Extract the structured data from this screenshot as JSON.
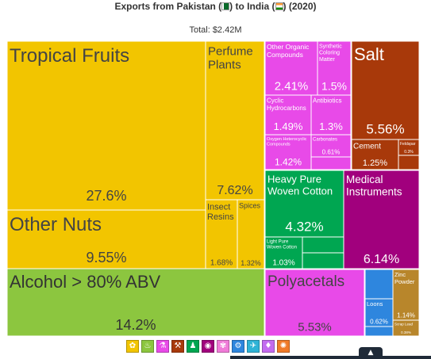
{
  "header": {
    "title_prefix": "Exports from Pakistan (",
    "title_middle": ") to India (",
    "title_suffix": ") (2020)",
    "subtitle": "Total: $2.42M"
  },
  "chart_data": {
    "type": "treemap",
    "title": "Exports from Pakistan ( ) to India ( ) (2020)",
    "subtitle": "Total: $2.42M",
    "unit": "share of total exports (%)",
    "cells": [
      {
        "name": "Tropical Fruits",
        "value": 27.6,
        "label": "27.6%",
        "color": "#f2c500"
      },
      {
        "name": "Other Nuts",
        "value": 9.55,
        "label": "9.55%",
        "color": "#f2c500"
      },
      {
        "name": "Perfume Plants",
        "value": 7.62,
        "label": "7.62%",
        "color": "#f2c500"
      },
      {
        "name": "Insect Resins",
        "value": 1.68,
        "label": "1.68%",
        "color": "#f2c500"
      },
      {
        "name": "Spices",
        "value": 1.32,
        "label": "1.32%",
        "color": "#f2c500"
      },
      {
        "name": "Alcohol > 80% ABV",
        "value": 14.2,
        "label": "14.2%",
        "color": "#8cc63f"
      },
      {
        "name": "Other Organic Compounds",
        "value": 2.41,
        "label": "2.41%",
        "color": "#e84ae8"
      },
      {
        "name": "Synthetic Coloring Matter",
        "value": 1.5,
        "label": "1.5%",
        "color": "#e84ae8"
      },
      {
        "name": "Cyclic Hydrocarbons",
        "value": 1.49,
        "label": "1.49%",
        "color": "#e84ae8"
      },
      {
        "name": "Antibiotics",
        "value": 1.3,
        "label": "1.3%",
        "color": "#e84ae8"
      },
      {
        "name": "Oxygen Heterocyclic Compounds",
        "value": 1.42,
        "label": "1.42%",
        "color": "#e84ae8"
      },
      {
        "name": "Carbonates",
        "value": 0.61,
        "label": "0.61%",
        "color": "#e84ae8"
      },
      {
        "name": "Salt",
        "value": 5.56,
        "label": "5.56%",
        "color": "#a8390a"
      },
      {
        "name": "Cement",
        "value": 1.25,
        "label": "1.25%",
        "color": "#a8390a"
      },
      {
        "name": "Feldspar",
        "value": 0.3,
        "label": "0.3%",
        "color": "#a8390a"
      },
      {
        "name": "Heavy Pure Woven Cotton",
        "value": 4.32,
        "label": "4.32%",
        "color": "#00a651"
      },
      {
        "name": "Light Pure Woven Cotton",
        "value": 1.03,
        "label": "1.03%",
        "color": "#00a651"
      },
      {
        "name": "Medical Instruments",
        "value": 6.14,
        "label": "6.14%",
        "color": "#a1007d"
      },
      {
        "name": "Polyacetals",
        "value": 5.53,
        "label": "5.53%",
        "color": "#e84ae8"
      },
      {
        "name": "Loons",
        "value": 0.62,
        "label": "0.62%",
        "color": "#2e86de"
      },
      {
        "name": "Zinc Powder",
        "value": 1.14,
        "label": "1.14%",
        "color": "#b8862b"
      },
      {
        "name": "Scrap Lead",
        "value": 0.38,
        "label": "0.38%",
        "color": "#b8862b"
      }
    ]
  },
  "legend": [
    {
      "name": "vegetable-products-icon",
      "glyph": "✿",
      "color": "#f2c500"
    },
    {
      "name": "foodstuffs-icon",
      "glyph": "♨",
      "color": "#8cc63f"
    },
    {
      "name": "chemical-products-icon",
      "glyph": "⚗",
      "color": "#e84ae8"
    },
    {
      "name": "mineral-products-icon",
      "glyph": "⚒",
      "color": "#a8390a"
    },
    {
      "name": "textiles-icon",
      "glyph": "♟",
      "color": "#00a651"
    },
    {
      "name": "instruments-icon",
      "glyph": "◉",
      "color": "#a1007d"
    },
    {
      "name": "plastics-icon",
      "glyph": "✾",
      "color": "#f07bd8"
    },
    {
      "name": "metals-icon",
      "glyph": "⚙",
      "color": "#2e86de"
    },
    {
      "name": "transportation-icon",
      "glyph": "✈",
      "color": "#2fb3d6"
    },
    {
      "name": "precious-metals-icon",
      "glyph": "♦",
      "color": "#c36bf0"
    },
    {
      "name": "miscellaneous-icon",
      "glyph": "✺",
      "color": "#f07b2a"
    }
  ],
  "scroll_top_glyph": "▲"
}
